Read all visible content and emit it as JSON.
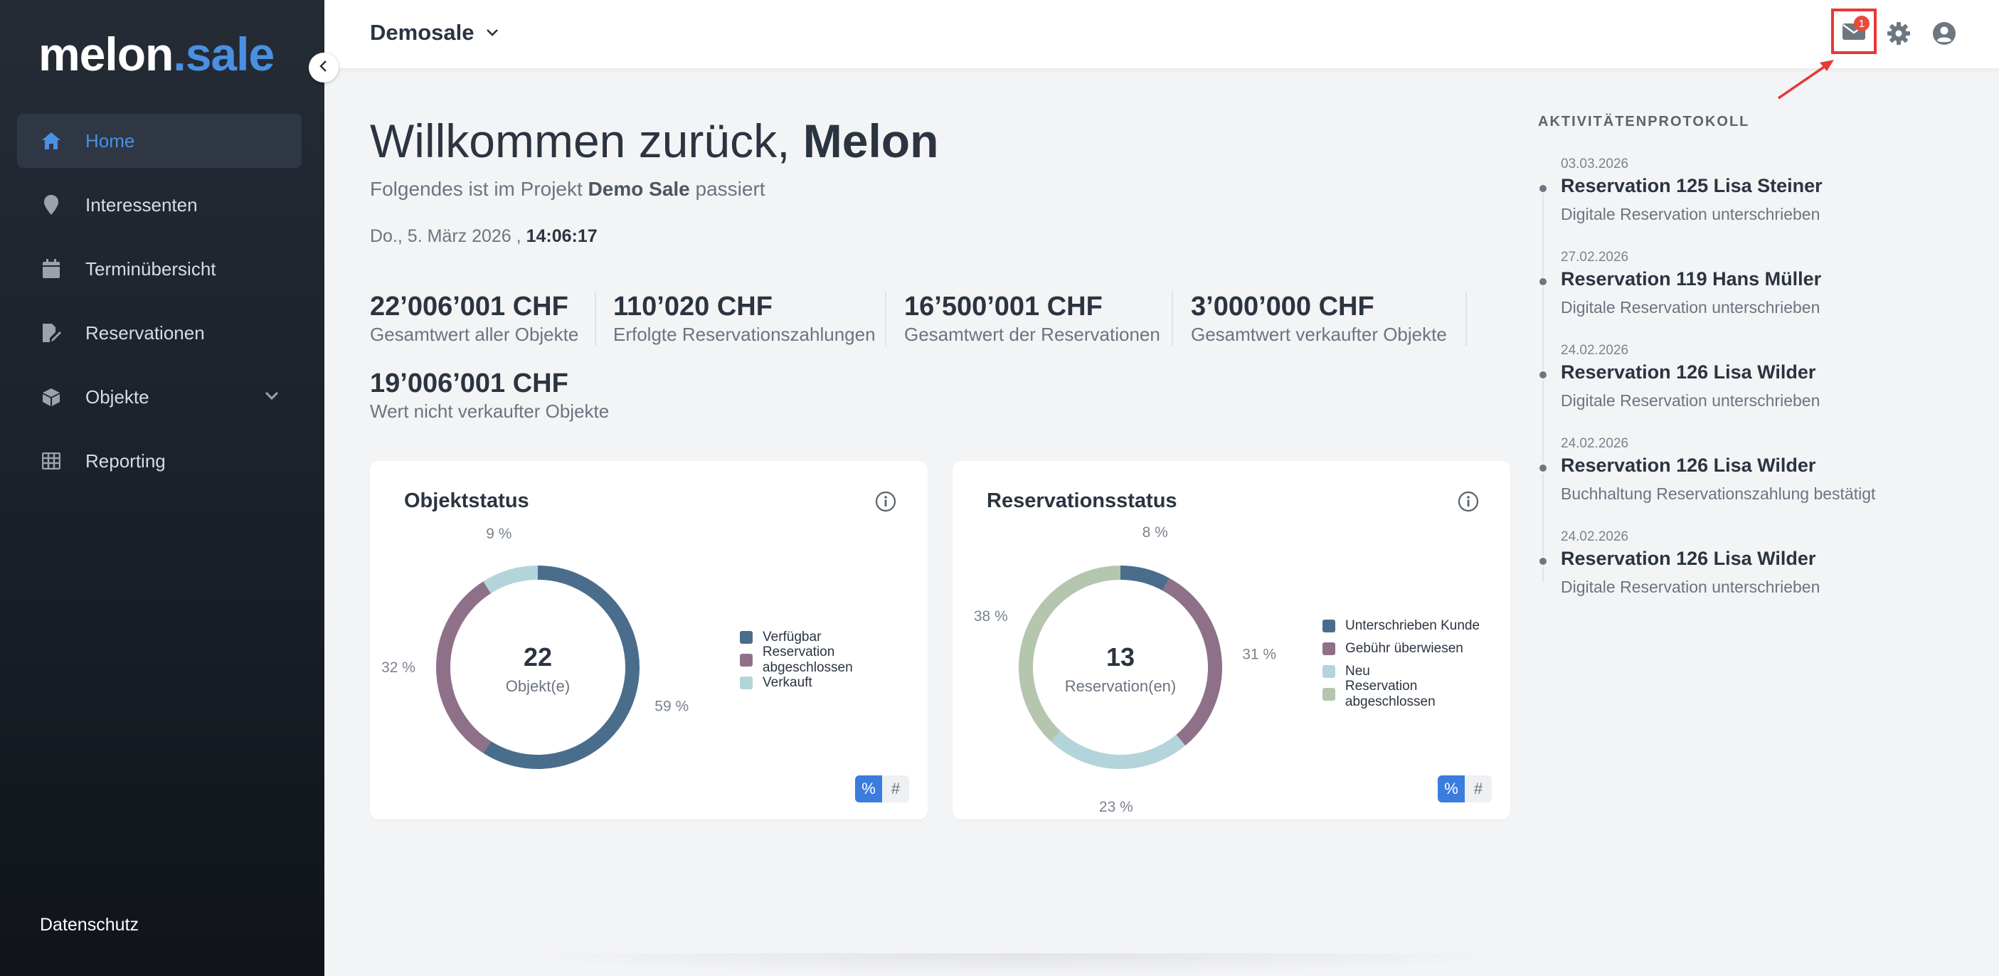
{
  "sidebar": {
    "logo_a": "melon",
    "logo_b": ".sale",
    "items": [
      {
        "label": "Home",
        "icon": "home-icon"
      },
      {
        "label": "Interessenten",
        "icon": "map-pin-icon"
      },
      {
        "label": "Terminübersicht",
        "icon": "calendar-icon"
      },
      {
        "label": "Reservationen",
        "icon": "signature-icon"
      },
      {
        "label": "Objekte",
        "icon": "cube-icon"
      },
      {
        "label": "Reporting",
        "icon": "table-icon"
      }
    ],
    "footer_link": "Datenschutz"
  },
  "topbar": {
    "project": "Demosale",
    "notification_count": "1",
    "icons": [
      "mail-icon",
      "gear-icon",
      "user-icon"
    ]
  },
  "welcome": {
    "greeting": "Willkommen zurück,",
    "name": "Melon",
    "subtitle_pre": "Folgendes ist im Projekt",
    "project": "Demo Sale",
    "subtitle_post": "passiert",
    "date": "Do., 5. März 2026 ,",
    "time": "14:06:17"
  },
  "kpis": [
    {
      "value": "22’006’001 CHF",
      "label": "Gesamtwert aller Objekte"
    },
    {
      "value": "110’020 CHF",
      "label": "Erfolgte Reservationszahlungen"
    },
    {
      "value": "16’500’001 CHF",
      "label": "Gesamtwert der Reservationen"
    },
    {
      "value": "3’000’000 CHF",
      "label": "Gesamtwert verkaufter Objekte"
    },
    {
      "value": "19’006’001 CHF",
      "label": "Wert nicht verkaufter Objekte"
    }
  ],
  "charts": {
    "toggle_percent": "%",
    "toggle_count": "#"
  },
  "chart_data": [
    {
      "type": "pie",
      "title": "Objektstatus",
      "center_value": "22",
      "center_label": "Objekt(e)",
      "slices": [
        {
          "name": "Verfügbar",
          "value": 59,
          "label": "59 %",
          "color": "#4a6d8c"
        },
        {
          "name": "Reservation abgeschlossen",
          "value": 32,
          "label": "32 %",
          "color": "#8f7089"
        },
        {
          "name": "Verkauft",
          "value": 9,
          "label": "9 %",
          "color": "#b3d4da"
        }
      ]
    },
    {
      "type": "pie",
      "title": "Reservationsstatus",
      "center_value": "13",
      "center_label": "Reservation(en)",
      "slices": [
        {
          "name": "Unterschrieben Kunde",
          "value": 8,
          "label": "8 %",
          "color": "#4a6d8c"
        },
        {
          "name": "Gebühr überwiesen",
          "value": 31,
          "label": "31 %",
          "color": "#8f7089"
        },
        {
          "name": "Neu",
          "value": 23,
          "label": "23 %",
          "color": "#b3d4da"
        },
        {
          "name": "Reservation abgeschlossen",
          "value": 38,
          "label": "38 %",
          "color": "#b4c6ae"
        }
      ]
    }
  ],
  "activity": {
    "title": "AKTIVITÄTENPROTOKOLL",
    "entries": [
      {
        "date": "03.03.2026",
        "title": "Reservation 125 Lisa Steiner",
        "desc": "Digitale Reservation unterschrieben"
      },
      {
        "date": "27.02.2026",
        "title": "Reservation 119 Hans Müller",
        "desc": "Digitale Reservation unterschrieben"
      },
      {
        "date": "24.02.2026",
        "title": "Reservation 126 Lisa Wilder",
        "desc": "Digitale Reservation unterschrieben"
      },
      {
        "date": "24.02.2026",
        "title": "Reservation 126 Lisa Wilder",
        "desc": "Buchhaltung Reservationszahlung bestätigt"
      },
      {
        "date": "24.02.2026",
        "title": "Reservation 126 Lisa Wilder",
        "desc": "Digitale Reservation unterschrieben"
      }
    ]
  }
}
